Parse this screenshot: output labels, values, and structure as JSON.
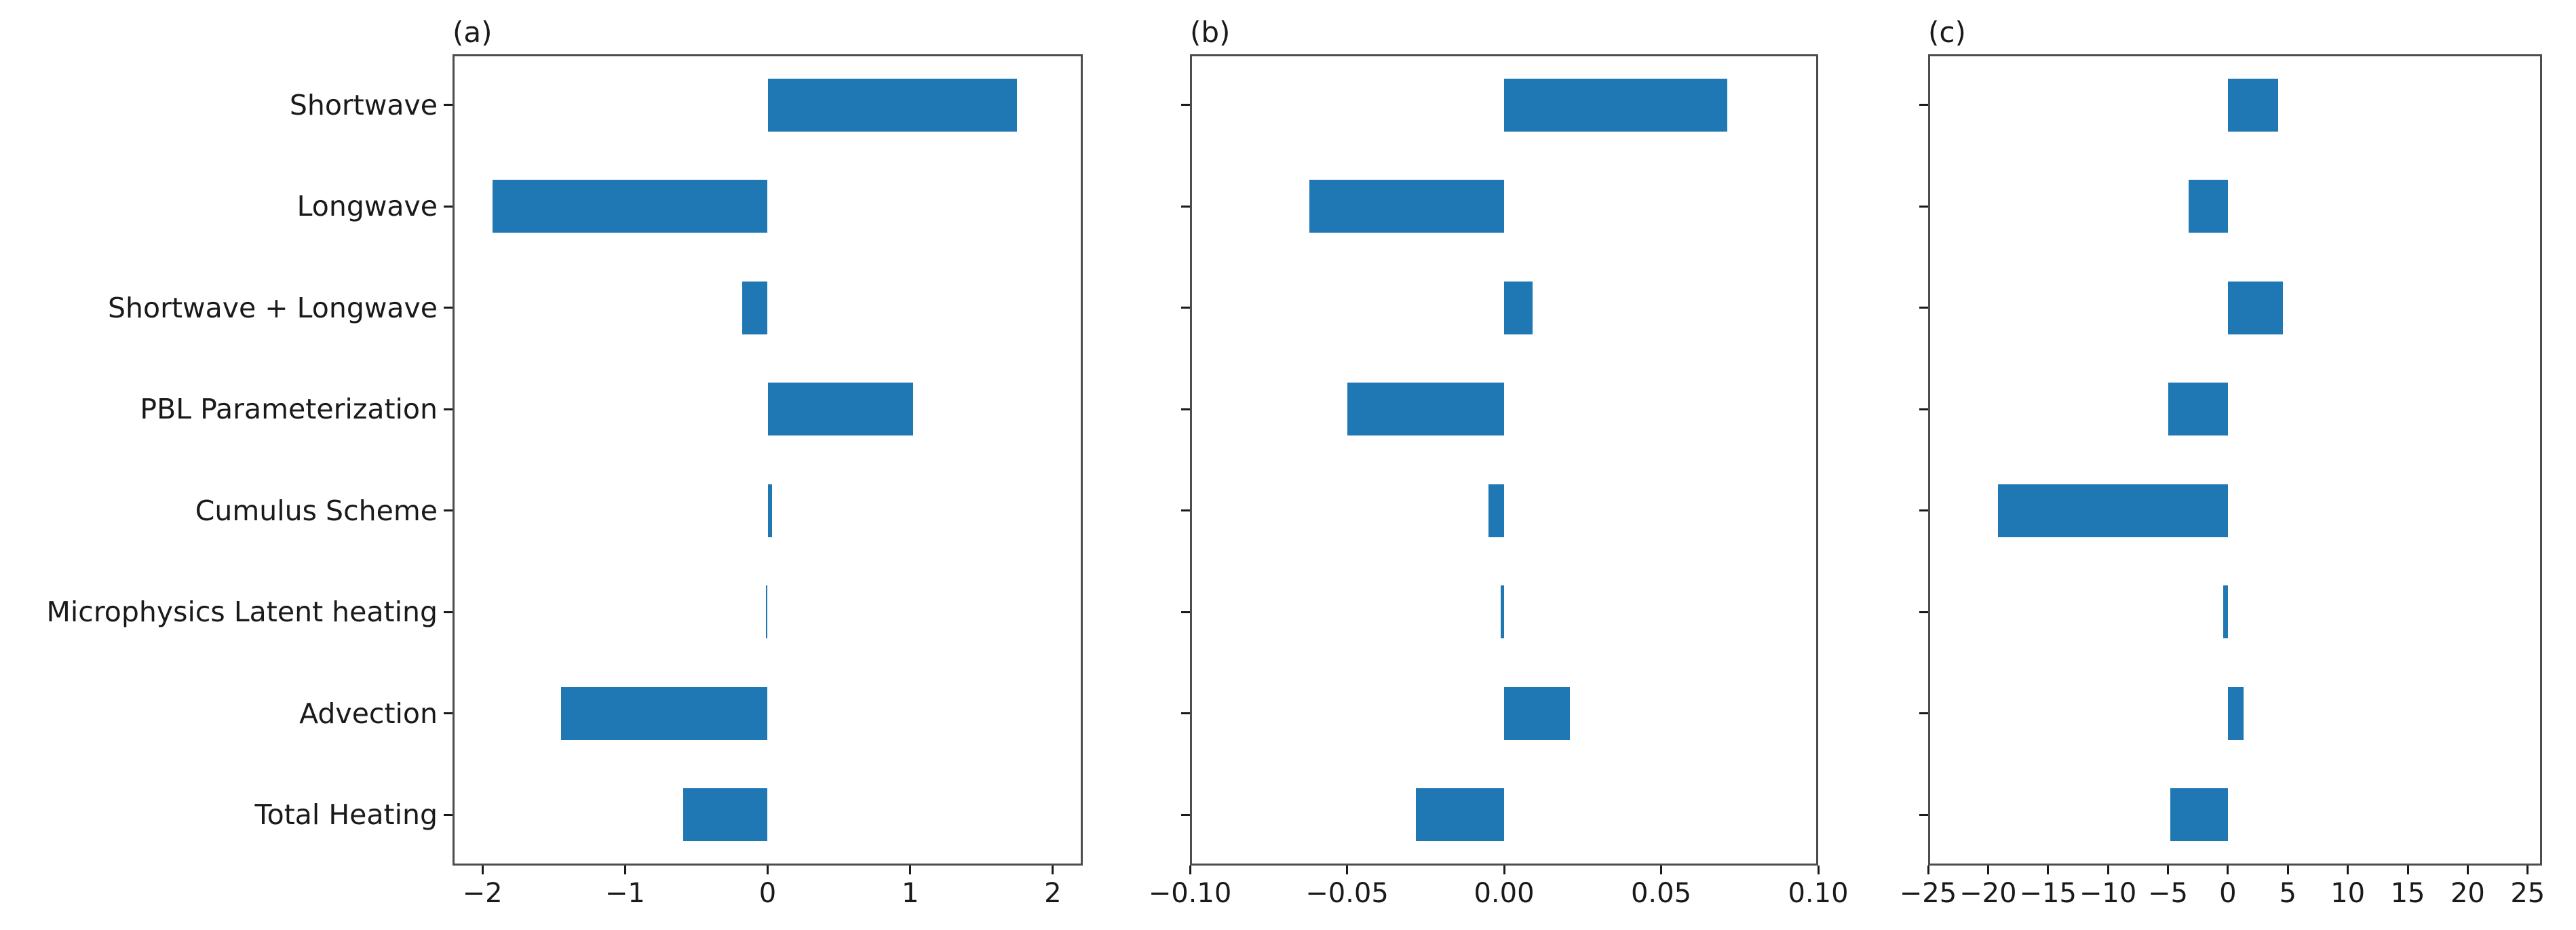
{
  "figure": {
    "bar_color": "#1f77b4",
    "spine_color": "#4d4d4d",
    "text_color": "#1a1a1a",
    "categories": [
      "Shortwave",
      "Longwave",
      "Shortwave + Longwave",
      "PBL Parameterization",
      "Cumulus Scheme",
      "Microphysics Latent heating",
      "Advection",
      "Total Heating"
    ],
    "panel_labels": [
      "(a)",
      "(b)",
      "(c)"
    ]
  },
  "chart_data": [
    {
      "type": "bar",
      "orientation": "horizontal",
      "title": "(a)",
      "categories": [
        "Shortwave",
        "Longwave",
        "Shortwave + Longwave",
        "PBL Parameterization",
        "Cumulus Scheme",
        "Microphysics Latent heating",
        "Advection",
        "Total Heating"
      ],
      "values": [
        1.75,
        -1.93,
        -0.18,
        1.02,
        0.03,
        -0.01,
        -1.45,
        -0.59
      ],
      "xlim": [
        -2.21,
        2.21
      ],
      "xticks": [
        -2,
        -1,
        0,
        1,
        2
      ],
      "xtick_labels": [
        "−2",
        "−1",
        "0",
        "1",
        "2"
      ],
      "grid": false,
      "legend": null
    },
    {
      "type": "bar",
      "orientation": "horizontal",
      "title": "(b)",
      "categories": [
        "Shortwave",
        "Longwave",
        "Shortwave + Longwave",
        "PBL Parameterization",
        "Cumulus Scheme",
        "Microphysics Latent heating",
        "Advection",
        "Total Heating"
      ],
      "values": [
        0.071,
        -0.062,
        0.009,
        -0.05,
        -0.005,
        -0.001,
        0.021,
        -0.028
      ],
      "xlim": [
        -0.1,
        0.1
      ],
      "xticks": [
        -0.1,
        -0.05,
        0,
        0.05,
        0.1
      ],
      "xtick_labels": [
        "−0.10",
        "−0.05",
        "0.00",
        "0.05",
        "0.10"
      ],
      "grid": false,
      "legend": null
    },
    {
      "type": "bar",
      "orientation": "horizontal",
      "title": "(c)",
      "categories": [
        "Shortwave",
        "Longwave",
        "Shortwave + Longwave",
        "PBL Parameterization",
        "Cumulus Scheme",
        "Microphysics Latent heating",
        "Advection",
        "Total Heating"
      ],
      "values": [
        4.2,
        -3.3,
        4.6,
        -5.0,
        -19.2,
        -0.4,
        1.3,
        -4.8
      ],
      "xlim": [
        -25,
        26.2
      ],
      "xticks": [
        -25,
        -20,
        -15,
        -10,
        -5,
        0,
        5,
        10,
        15,
        20,
        25
      ],
      "xtick_labels": [
        "−25",
        "−20",
        "−15",
        "−10",
        "−5",
        "0",
        "5",
        "10",
        "15",
        "20",
        "25"
      ],
      "grid": false,
      "legend": null
    }
  ]
}
